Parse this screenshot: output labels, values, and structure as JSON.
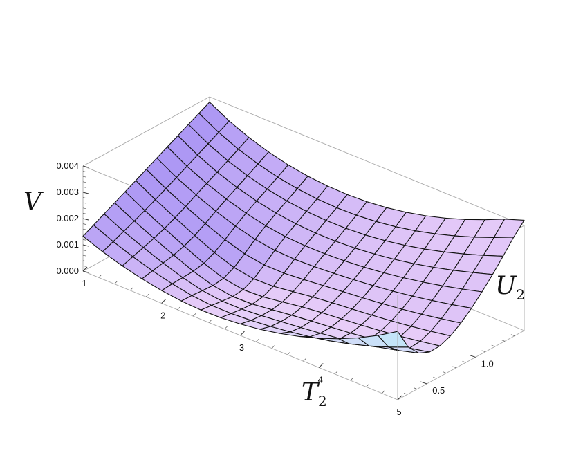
{
  "chart_data": {
    "type": "surface3d",
    "x_axis": {
      "title_main": "T",
      "title_sub": "2",
      "range": [
        1,
        5
      ],
      "ticks": [
        "1",
        "2",
        "3",
        "4",
        "5"
      ]
    },
    "y_axis": {
      "title_main": "U",
      "title_sub": "2",
      "range": [
        0.2,
        1.5
      ],
      "ticks": [
        "0.5",
        "1.0"
      ]
    },
    "z_axis": {
      "title": "V",
      "range": [
        0.0,
        0.004
      ],
      "ticks": [
        "0.000",
        "0.001",
        "0.002",
        "0.003",
        "0.004"
      ]
    },
    "mesh": {
      "t_steps": 16,
      "u_steps": 12
    },
    "surface_colors": {
      "low": "#6a5cf0",
      "mid": "#e8cdf8",
      "high": "#b8ecf8",
      "mesh_line": "#111111"
    },
    "boxed": true
  }
}
